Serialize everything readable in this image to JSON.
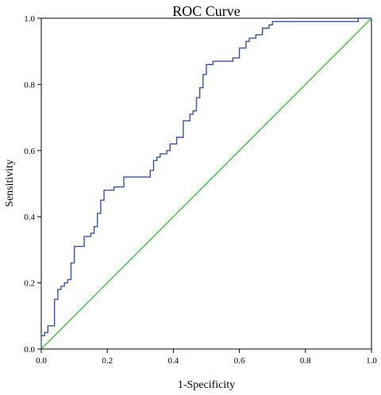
{
  "chart_data": {
    "type": "line",
    "title": "ROC Curve",
    "xlabel": "1-Specificity",
    "ylabel": "Sensitivity",
    "xlim": [
      0.0,
      1.0
    ],
    "ylim": [
      0.0,
      1.0
    ],
    "xticks": [
      0.0,
      0.2,
      0.4,
      0.6,
      0.8,
      1.0
    ],
    "yticks": [
      0.0,
      0.2,
      0.4,
      0.6,
      0.8,
      1.0
    ],
    "xtick_labels": [
      "0.0",
      "0.2",
      "0.4",
      "0.6",
      "0.8",
      "1.0"
    ],
    "ytick_labels": [
      "0.0",
      "0.2",
      "0.4",
      "0.6",
      "0.8",
      "1.0"
    ],
    "grid": false,
    "series": [
      {
        "color": "#3a50a6",
        "x": [
          0.0,
          0.0,
          0.01,
          0.01,
          0.02,
          0.02,
          0.04,
          0.04,
          0.05,
          0.05,
          0.06,
          0.06,
          0.07,
          0.07,
          0.08,
          0.08,
          0.09,
          0.09,
          0.1,
          0.1,
          0.11,
          0.11,
          0.13,
          0.13,
          0.15,
          0.15,
          0.16,
          0.16,
          0.17,
          0.17,
          0.18,
          0.18,
          0.19,
          0.19,
          0.22,
          0.22,
          0.25,
          0.25,
          0.33,
          0.33,
          0.34,
          0.34,
          0.35,
          0.35,
          0.36,
          0.36,
          0.38,
          0.38,
          0.39,
          0.39,
          0.41,
          0.41,
          0.43,
          0.43,
          0.45,
          0.45,
          0.46,
          0.46,
          0.47,
          0.47,
          0.48,
          0.48,
          0.49,
          0.49,
          0.5,
          0.5,
          0.52,
          0.52,
          0.54,
          0.54,
          0.58,
          0.58,
          0.6,
          0.6,
          0.62,
          0.62,
          0.63,
          0.63,
          0.65,
          0.65,
          0.67,
          0.67,
          0.69,
          0.69,
          0.7,
          0.7,
          0.71,
          0.71,
          0.96,
          0.96,
          1.0
        ],
        "y": [
          0.0,
          0.04,
          0.04,
          0.05,
          0.05,
          0.07,
          0.07,
          0.15,
          0.15,
          0.18,
          0.18,
          0.19,
          0.19,
          0.2,
          0.2,
          0.21,
          0.21,
          0.26,
          0.26,
          0.31,
          0.31,
          0.31,
          0.31,
          0.34,
          0.34,
          0.35,
          0.35,
          0.37,
          0.37,
          0.41,
          0.41,
          0.45,
          0.45,
          0.48,
          0.48,
          0.49,
          0.49,
          0.52,
          0.52,
          0.54,
          0.54,
          0.57,
          0.57,
          0.58,
          0.58,
          0.59,
          0.59,
          0.6,
          0.6,
          0.62,
          0.62,
          0.64,
          0.64,
          0.69,
          0.69,
          0.71,
          0.71,
          0.72,
          0.72,
          0.76,
          0.76,
          0.79,
          0.79,
          0.83,
          0.83,
          0.86,
          0.86,
          0.87,
          0.87,
          0.87,
          0.87,
          0.88,
          0.88,
          0.91,
          0.91,
          0.93,
          0.93,
          0.94,
          0.94,
          0.95,
          0.95,
          0.97,
          0.97,
          0.98,
          0.98,
          0.99,
          0.99,
          0.99,
          0.99,
          1.0,
          1.0
        ]
      },
      {
        "color": "#3ec13e",
        "x": [
          0.0,
          1.0
        ],
        "y": [
          0.0,
          1.0
        ]
      }
    ]
  }
}
